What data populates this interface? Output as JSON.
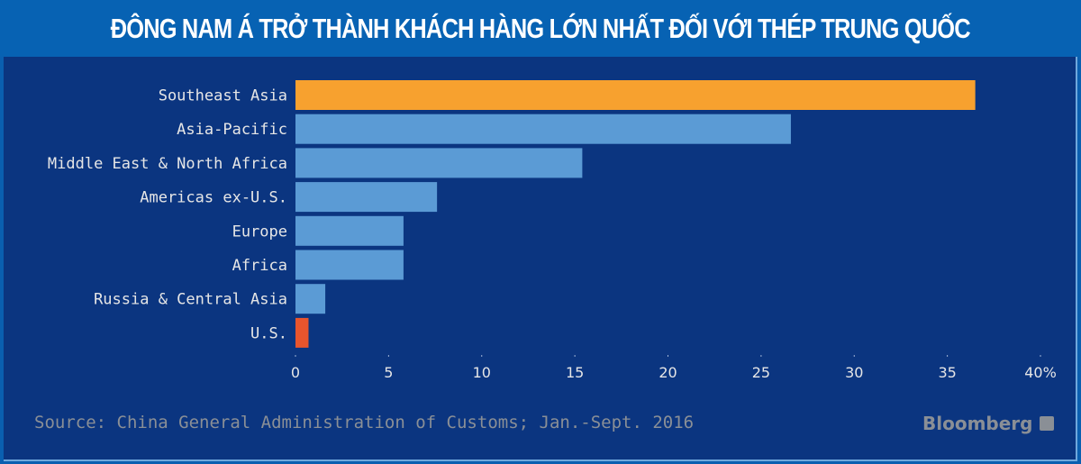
{
  "title": "ĐÔNG NAM Á TRỞ THÀNH KHÁCH HÀNG LỚN NHẤT ĐỐI VỚI THÉP TRUNG QUỐC",
  "source": "Source: China General Administration of Customs; Jan.-Sept. 2016",
  "brand": "Bloomberg",
  "colors": {
    "highlight": "#f7a12f",
    "default": "#5b9bd5",
    "us": "#e8552d",
    "background": "#0b3580",
    "title_bg": "#0762b3"
  },
  "chart_data": {
    "type": "bar",
    "orientation": "horizontal",
    "title": "ĐÔNG NAM Á TRỞ THÀNH KHÁCH HÀNG LỚN NHẤT ĐỐI VỚI THÉP TRUNG QUỐC",
    "categories": [
      "Southeast Asia",
      "Asia-Pacific",
      "Middle East & North Africa",
      "Americas ex-U.S.",
      "Europe",
      "Africa",
      "Russia & Central Asia",
      "U.S."
    ],
    "values": [
      36.5,
      26.6,
      15.4,
      7.6,
      5.8,
      5.8,
      1.6,
      0.7
    ],
    "bar_colors": [
      "#f7a12f",
      "#5b9bd5",
      "#5b9bd5",
      "#5b9bd5",
      "#5b9bd5",
      "#5b9bd5",
      "#5b9bd5",
      "#e8552d"
    ],
    "xlim": [
      0,
      40
    ],
    "xticks": [
      0,
      5,
      10,
      15,
      20,
      25,
      30,
      35,
      40
    ],
    "xtick_labels": [
      "0",
      "5",
      "10",
      "15",
      "20",
      "25",
      "30",
      "35",
      "40%"
    ],
    "unit": "%",
    "grid": false
  }
}
